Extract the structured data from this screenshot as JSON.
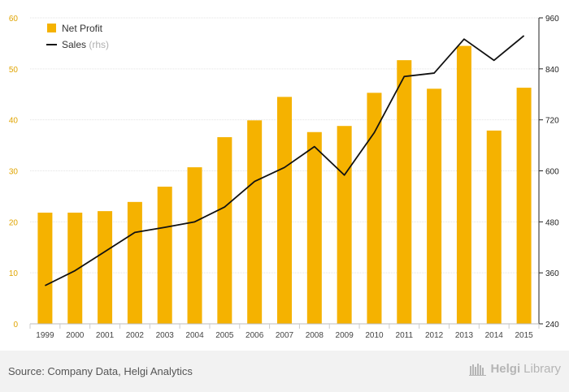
{
  "chart_data": {
    "type": "bar",
    "categories": [
      "1999",
      "2000",
      "2001",
      "2002",
      "2003",
      "2004",
      "2005",
      "2006",
      "2007",
      "2008",
      "2009",
      "2010",
      "2011",
      "2012",
      "2013",
      "2014",
      "2015"
    ],
    "series": [
      {
        "name": "Net Profit",
        "type": "bar",
        "axis": "left",
        "color": "#f5b200",
        "values": [
          21.8,
          21.8,
          22.1,
          23.9,
          26.9,
          30.7,
          36.6,
          39.9,
          44.5,
          37.6,
          38.8,
          45.3,
          51.7,
          46.1,
          54.5,
          37.9,
          46.3
        ]
      },
      {
        "name": "Sales",
        "name_suffix": "(rhs)",
        "type": "line",
        "axis": "right",
        "color": "#111111",
        "values": [
          330,
          365,
          410,
          455,
          467,
          480,
          515,
          575,
          608,
          657,
          590,
          690,
          822,
          830,
          910,
          860,
          918
        ]
      }
    ],
    "left_axis": {
      "min": 0,
      "max": 60,
      "ticks": [
        0,
        10,
        20,
        30,
        40,
        50,
        60
      ]
    },
    "right_axis": {
      "min": 240,
      "max": 960,
      "ticks": [
        240,
        360,
        480,
        600,
        720,
        840,
        960
      ]
    },
    "title": "",
    "xlabel": "",
    "ylabel": "",
    "grid": true,
    "legend_position": "top-left"
  },
  "footer": {
    "source": "Source: Company Data, Helgi Analytics",
    "brand_bold": "Helgi",
    "brand_light": "Library"
  }
}
